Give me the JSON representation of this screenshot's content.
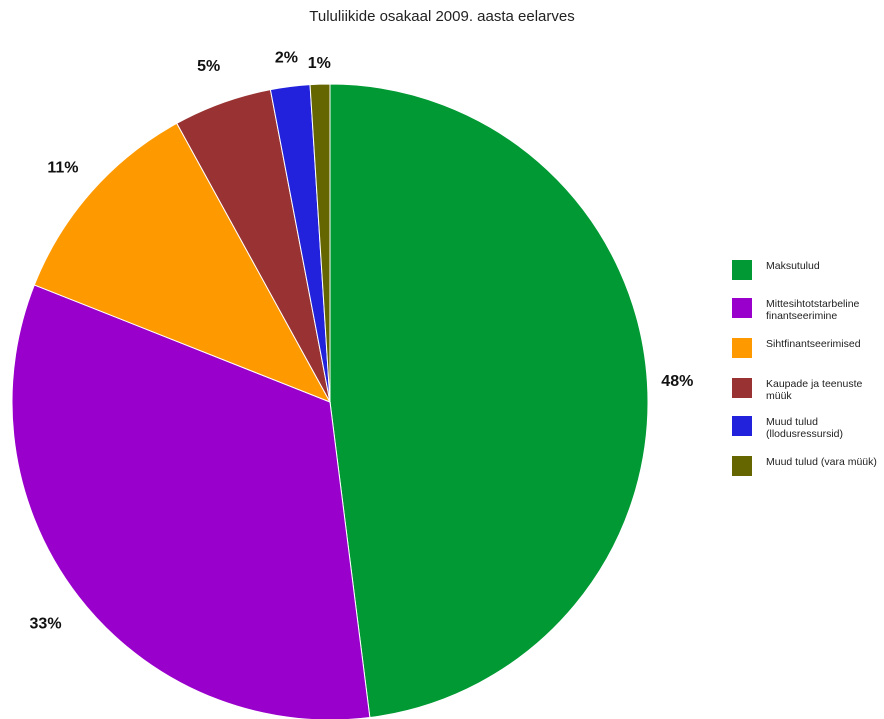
{
  "chart_data": {
    "type": "pie",
    "title": "Tululiikide osakaal 2009. aasta eelarves",
    "slices": [
      {
        "label": "Maksutulud",
        "value": 48,
        "value_label": "48%",
        "color": "#009933"
      },
      {
        "label": "Mittesihtotstarbeline finantseerimine",
        "value": 33,
        "value_label": "33%",
        "color": "#9900cc"
      },
      {
        "label": "Sihtfinantseerimised",
        "value": 11,
        "value_label": "11%",
        "color": "#ff9900"
      },
      {
        "label": "Kaupade ja teenuste müük",
        "value": 5,
        "value_label": "5%",
        "color": "#993333"
      },
      {
        "label": "Muud tulud (llodusressursid)",
        "value": 2,
        "value_label": "2%",
        "color": "#2222dd"
      },
      {
        "label": "Muud tulud (vara müük)",
        "value": 1,
        "value_label": "1%",
        "color": "#666600"
      }
    ],
    "legend_position": "right"
  }
}
